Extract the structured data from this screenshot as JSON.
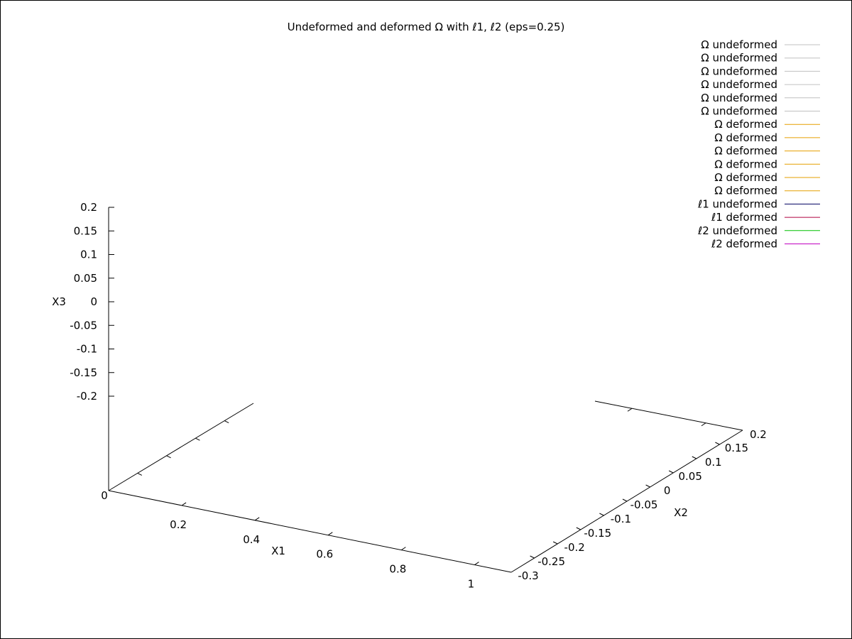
{
  "chart_data": {
    "type": "line",
    "title": "Undeformed and deformed Ω with ℓ1, ℓ2 (eps=0.25)",
    "xlabel": "X1",
    "ylabel": "X2",
    "zlabel": "X3",
    "xlim": [
      0,
      1.1
    ],
    "ylim": [
      -0.3,
      0.2
    ],
    "zlim": [
      -0.2,
      0.2
    ],
    "x_ticks": [
      "0",
      "0.2",
      "0.4",
      "0.6",
      "0.8",
      "1"
    ],
    "y_ticks": [
      "-0.3",
      "-0.25",
      "-0.2",
      "-0.15",
      "-0.1",
      "-0.05",
      "0",
      "0.05",
      "0.1",
      "0.15",
      "0.2"
    ],
    "z_ticks": [
      "0.2",
      "0.15",
      "0.1",
      "0.05",
      "0",
      "-0.05",
      "-0.1",
      "-0.15",
      "-0.2"
    ],
    "grid": false,
    "legend_position": "top-right",
    "series": [
      {
        "name": "Ω undeformed",
        "color": "#c0c0c0",
        "values": []
      },
      {
        "name": "Ω undeformed",
        "color": "#c0c0c0",
        "values": []
      },
      {
        "name": "Ω undeformed",
        "color": "#c0c0c0",
        "values": []
      },
      {
        "name": "Ω undeformed",
        "color": "#c0c0c0",
        "values": []
      },
      {
        "name": "Ω undeformed",
        "color": "#c0c0c0",
        "values": []
      },
      {
        "name": "Ω undeformed",
        "color": "#c0c0c0",
        "values": []
      },
      {
        "name": "Ω deformed",
        "color": "#e69f00",
        "values": []
      },
      {
        "name": "Ω deformed",
        "color": "#e69f00",
        "values": []
      },
      {
        "name": "Ω deformed",
        "color": "#e69f00",
        "values": []
      },
      {
        "name": "Ω deformed",
        "color": "#e69f00",
        "values": []
      },
      {
        "name": "Ω deformed",
        "color": "#e69f00",
        "values": []
      },
      {
        "name": "Ω deformed",
        "color": "#e69f00",
        "values": []
      },
      {
        "name": "ℓ1 undeformed",
        "color": "#000060",
        "values": []
      },
      {
        "name": "ℓ1 deformed",
        "color": "#b00040",
        "values": []
      },
      {
        "name": "ℓ2 undeformed",
        "color": "#00c000",
        "values": []
      },
      {
        "name": "ℓ2 deformed",
        "color": "#c000c0",
        "values": []
      }
    ]
  }
}
